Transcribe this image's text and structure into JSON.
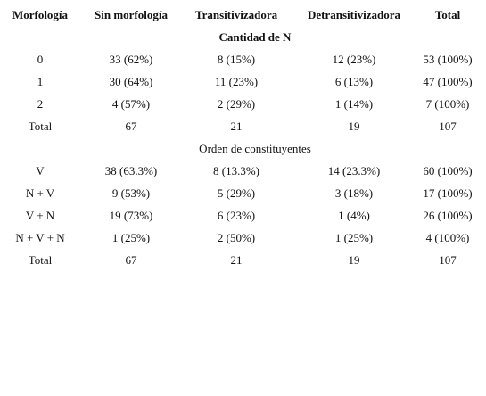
{
  "table": {
    "header": [
      "Morfología",
      "Sin morfología",
      "Transitivizadora",
      "Detransitivizadora",
      "Total"
    ],
    "sections": [
      {
        "title": "Cantidad de N",
        "rows": [
          [
            "0",
            "33 (62%)",
            "8 (15%)",
            "12 (23%)",
            "53 (100%)"
          ],
          [
            "1",
            "30 (64%)",
            "11 (23%)",
            "6 (13%)",
            "47 (100%)"
          ],
          [
            "2",
            "4 (57%)",
            "2 (29%)",
            "1 (14%)",
            "7 (100%)"
          ],
          [
            "Total",
            "67",
            "21",
            "19",
            "107"
          ]
        ]
      },
      {
        "title": "Orden de constituyentes",
        "rows": [
          [
            "V",
            "38 (63.3%)",
            "8 (13.3%)",
            "14 (23.3%)",
            "60 (100%)"
          ],
          [
            "N + V",
            "9 (53%)",
            "5 (29%)",
            "3 (18%)",
            "17 (100%)"
          ],
          [
            "V + N",
            "19 (73%)",
            "6 (23%)",
            "1 (4%)",
            "26 (100%)"
          ],
          [
            "N + V + N",
            "1 (25%)",
            "2 (50%)",
            "1 (25%)",
            "4 (100%)"
          ],
          [
            "Total",
            "67",
            "21",
            "19",
            "107"
          ]
        ]
      }
    ]
  }
}
